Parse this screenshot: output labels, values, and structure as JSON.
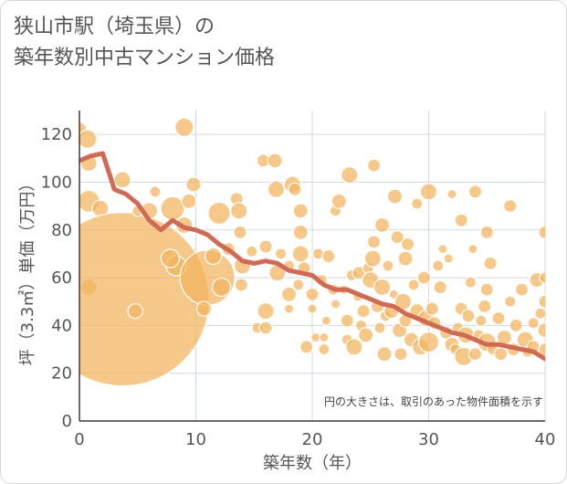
{
  "title": {
    "line1": "狭山市駅（埼玉県）の",
    "line2": "築年数別中古マンション価格"
  },
  "chart_data": {
    "type": "scatter",
    "xlabel": "築年数（年）",
    "ylabel": "坪（3.3㎡）単価（万円）",
    "note": "円の大きさは、取引のあった物件面積を示す",
    "xlim": [
      0,
      40
    ],
    "ylim": [
      0,
      130
    ],
    "xticks": [
      0,
      10,
      20,
      30,
      40
    ],
    "yticks": [
      0,
      20,
      40,
      60,
      80,
      100,
      120
    ],
    "colors": {
      "bubble": "#f2b45e",
      "bubble_stroke": "#ffffff",
      "line": "#d06a55",
      "grid": "#cfd8e0",
      "axis": "#3a3a3a"
    },
    "line": {
      "x": [
        0,
        1,
        2,
        3,
        4,
        5,
        6,
        7,
        8,
        9,
        10,
        11,
        12,
        13,
        14,
        15,
        16,
        17,
        18,
        19,
        20,
        21,
        22,
        23,
        24,
        25,
        26,
        27,
        28,
        29,
        30,
        31,
        32,
        33,
        34,
        35,
        36,
        37,
        38,
        39,
        40
      ],
      "y": [
        109,
        111,
        112,
        97,
        95,
        91,
        84,
        80,
        84,
        81,
        80,
        78,
        74,
        71,
        67,
        66,
        67,
        66,
        63,
        62,
        61,
        57,
        55,
        55,
        53,
        51,
        49,
        48,
        45,
        43,
        41,
        39,
        37,
        36,
        34,
        32,
        32,
        31,
        30,
        29,
        26
      ]
    },
    "bubbles": [
      {
        "x": 0,
        "y": 122,
        "r": 8
      },
      {
        "x": 0.7,
        "y": 118,
        "r": 10
      },
      {
        "x": 0.8,
        "y": 108,
        "r": 9
      },
      {
        "x": 0.8,
        "y": 92,
        "r": 12
      },
      {
        "x": 0.8,
        "y": 56,
        "r": 9
      },
      {
        "x": 1.8,
        "y": 89,
        "r": 9
      },
      {
        "x": 3.7,
        "y": 101,
        "r": 9
      },
      {
        "x": 3.7,
        "y": 51,
        "r": 95
      },
      {
        "x": 4.8,
        "y": 46,
        "r": 8
      },
      {
        "x": 5.0,
        "y": 88,
        "r": 6
      },
      {
        "x": 6.0,
        "y": 88,
        "r": 9
      },
      {
        "x": 6.5,
        "y": 96,
        "r": 6
      },
      {
        "x": 8.0,
        "y": 89,
        "r": 13
      },
      {
        "x": 8.3,
        "y": 65,
        "r": 11
      },
      {
        "x": 7.8,
        "y": 68,
        "r": 10
      },
      {
        "x": 9.0,
        "y": 123,
        "r": 10
      },
      {
        "x": 9.4,
        "y": 92,
        "r": 8
      },
      {
        "x": 9.8,
        "y": 99,
        "r": 8
      },
      {
        "x": 9.0,
        "y": 82,
        "r": 9
      },
      {
        "x": 11.0,
        "y": 60,
        "r": 30
      },
      {
        "x": 10.7,
        "y": 47,
        "r": 8
      },
      {
        "x": 11.5,
        "y": 69,
        "r": 9
      },
      {
        "x": 12.0,
        "y": 87,
        "r": 12
      },
      {
        "x": 12.2,
        "y": 56,
        "r": 10
      },
      {
        "x": 12.8,
        "y": 72,
        "r": 7
      },
      {
        "x": 13.5,
        "y": 93,
        "r": 7
      },
      {
        "x": 13.7,
        "y": 88,
        "r": 9
      },
      {
        "x": 13.8,
        "y": 79,
        "r": 7
      },
      {
        "x": 13.9,
        "y": 57,
        "r": 7
      },
      {
        "x": 14.0,
        "y": 65,
        "r": 9
      },
      {
        "x": 14.8,
        "y": 71,
        "r": 6
      },
      {
        "x": 15.3,
        "y": 39,
        "r": 6
      },
      {
        "x": 15.8,
        "y": 109,
        "r": 7
      },
      {
        "x": 16.0,
        "y": 73,
        "r": 7
      },
      {
        "x": 16.0,
        "y": 46,
        "r": 9
      },
      {
        "x": 16.0,
        "y": 39,
        "r": 7
      },
      {
        "x": 16.8,
        "y": 109,
        "r": 8
      },
      {
        "x": 16.9,
        "y": 97,
        "r": 9
      },
      {
        "x": 17.0,
        "y": 62,
        "r": 9
      },
      {
        "x": 17.3,
        "y": 70,
        "r": 6
      },
      {
        "x": 18.0,
        "y": 65,
        "r": 6
      },
      {
        "x": 18.0,
        "y": 53,
        "r": 8
      },
      {
        "x": 18.0,
        "y": 47,
        "r": 5
      },
      {
        "x": 18.3,
        "y": 99,
        "r": 9
      },
      {
        "x": 18.5,
        "y": 97,
        "r": 7
      },
      {
        "x": 18.8,
        "y": 57,
        "r": 6
      },
      {
        "x": 19.0,
        "y": 88,
        "r": 8
      },
      {
        "x": 19.0,
        "y": 79,
        "r": 8
      },
      {
        "x": 19.0,
        "y": 70,
        "r": 9
      },
      {
        "x": 19.3,
        "y": 64,
        "r": 7
      },
      {
        "x": 19.5,
        "y": 31,
        "r": 7
      },
      {
        "x": 20.0,
        "y": 53,
        "r": 7
      },
      {
        "x": 20.0,
        "y": 47,
        "r": 5
      },
      {
        "x": 20.3,
        "y": 35,
        "r": 5
      },
      {
        "x": 20.5,
        "y": 70,
        "r": 6
      },
      {
        "x": 20.8,
        "y": 59,
        "r": 6
      },
      {
        "x": 21.0,
        "y": 35,
        "r": 5
      },
      {
        "x": 21.0,
        "y": 30,
        "r": 6
      },
      {
        "x": 21.2,
        "y": 42,
        "r": 5
      },
      {
        "x": 21.4,
        "y": 69,
        "r": 7
      },
      {
        "x": 21.8,
        "y": 55,
        "r": 6
      },
      {
        "x": 22.0,
        "y": 49,
        "r": 5
      },
      {
        "x": 22.0,
        "y": 88,
        "r": 6
      },
      {
        "x": 22.3,
        "y": 92,
        "r": 8
      },
      {
        "x": 22.7,
        "y": 55,
        "r": 5
      },
      {
        "x": 23.0,
        "y": 34,
        "r": 6
      },
      {
        "x": 23.0,
        "y": 42,
        "r": 7
      },
      {
        "x": 23.2,
        "y": 103,
        "r": 9
      },
      {
        "x": 23.4,
        "y": 61,
        "r": 6
      },
      {
        "x": 23.6,
        "y": 31,
        "r": 9
      },
      {
        "x": 23.9,
        "y": 52,
        "r": 5
      },
      {
        "x": 24.0,
        "y": 62,
        "r": 7
      },
      {
        "x": 24.2,
        "y": 40,
        "r": 6
      },
      {
        "x": 24.4,
        "y": 46,
        "r": 7
      },
      {
        "x": 24.6,
        "y": 36,
        "r": 8
      },
      {
        "x": 24.8,
        "y": 64,
        "r": 6
      },
      {
        "x": 25.0,
        "y": 59,
        "r": 9
      },
      {
        "x": 25.2,
        "y": 68,
        "r": 9
      },
      {
        "x": 25.3,
        "y": 75,
        "r": 7
      },
      {
        "x": 25.3,
        "y": 107,
        "r": 7
      },
      {
        "x": 25.6,
        "y": 48,
        "r": 7
      },
      {
        "x": 25.8,
        "y": 39,
        "r": 6
      },
      {
        "x": 26.0,
        "y": 82,
        "r": 8
      },
      {
        "x": 26.0,
        "y": 56,
        "r": 9
      },
      {
        "x": 26.2,
        "y": 28,
        "r": 8
      },
      {
        "x": 26.3,
        "y": 44,
        "r": 6
      },
      {
        "x": 26.5,
        "y": 65,
        "r": 6
      },
      {
        "x": 26.8,
        "y": 46,
        "r": 8
      },
      {
        "x": 27.0,
        "y": 53,
        "r": 5
      },
      {
        "x": 27.1,
        "y": 94,
        "r": 8
      },
      {
        "x": 27.3,
        "y": 77,
        "r": 7
      },
      {
        "x": 27.5,
        "y": 38,
        "r": 8
      },
      {
        "x": 27.6,
        "y": 28,
        "r": 7
      },
      {
        "x": 27.8,
        "y": 50,
        "r": 9
      },
      {
        "x": 28.0,
        "y": 68,
        "r": 8
      },
      {
        "x": 28.0,
        "y": 42,
        "r": 7
      },
      {
        "x": 28.2,
        "y": 74,
        "r": 7
      },
      {
        "x": 28.5,
        "y": 34,
        "r": 8
      },
      {
        "x": 28.7,
        "y": 57,
        "r": 6
      },
      {
        "x": 29.0,
        "y": 91,
        "r": 6
      },
      {
        "x": 29.0,
        "y": 46,
        "r": 8
      },
      {
        "x": 29.3,
        "y": 31,
        "r": 9
      },
      {
        "x": 29.6,
        "y": 60,
        "r": 7
      },
      {
        "x": 29.8,
        "y": 43,
        "r": 9
      },
      {
        "x": 30.0,
        "y": 96,
        "r": 9
      },
      {
        "x": 30.0,
        "y": 33,
        "r": 11
      },
      {
        "x": 30.3,
        "y": 47,
        "r": 7
      },
      {
        "x": 30.5,
        "y": 41,
        "r": 7
      },
      {
        "x": 30.8,
        "y": 65,
        "r": 6
      },
      {
        "x": 31.0,
        "y": 56,
        "r": 7
      },
      {
        "x": 31.2,
        "y": 72,
        "r": 5
      },
      {
        "x": 31.5,
        "y": 37,
        "r": 7
      },
      {
        "x": 31.7,
        "y": 68,
        "r": 5
      },
      {
        "x": 32.0,
        "y": 95,
        "r": 5
      },
      {
        "x": 32.0,
        "y": 32,
        "r": 8
      },
      {
        "x": 32.3,
        "y": 30,
        "r": 6
      },
      {
        "x": 32.5,
        "y": 39,
        "r": 6
      },
      {
        "x": 32.8,
        "y": 47,
        "r": 7
      },
      {
        "x": 32.8,
        "y": 84,
        "r": 7
      },
      {
        "x": 33.0,
        "y": 27,
        "r": 10
      },
      {
        "x": 33.2,
        "y": 36,
        "r": 9
      },
      {
        "x": 33.4,
        "y": 44,
        "r": 7
      },
      {
        "x": 33.6,
        "y": 58,
        "r": 6
      },
      {
        "x": 33.8,
        "y": 72,
        "r": 5
      },
      {
        "x": 34.0,
        "y": 28,
        "r": 7
      },
      {
        "x": 34.0,
        "y": 96,
        "r": 7
      },
      {
        "x": 34.3,
        "y": 36,
        "r": 6
      },
      {
        "x": 34.5,
        "y": 42,
        "r": 6
      },
      {
        "x": 34.8,
        "y": 48,
        "r": 7
      },
      {
        "x": 35.0,
        "y": 55,
        "r": 7
      },
      {
        "x": 35.0,
        "y": 79,
        "r": 7
      },
      {
        "x": 35.0,
        "y": 33,
        "r": 10
      },
      {
        "x": 35.3,
        "y": 66,
        "r": 7
      },
      {
        "x": 35.5,
        "y": 30,
        "r": 6
      },
      {
        "x": 36.0,
        "y": 43,
        "r": 7
      },
      {
        "x": 36.2,
        "y": 28,
        "r": 7
      },
      {
        "x": 36.5,
        "y": 35,
        "r": 8
      },
      {
        "x": 37.0,
        "y": 90,
        "r": 7
      },
      {
        "x": 37.0,
        "y": 50,
        "r": 6
      },
      {
        "x": 37.3,
        "y": 30,
        "r": 7
      },
      {
        "x": 37.5,
        "y": 40,
        "r": 7
      },
      {
        "x": 38.0,
        "y": 55,
        "r": 7
      },
      {
        "x": 38.3,
        "y": 34,
        "r": 9
      },
      {
        "x": 38.5,
        "y": 29,
        "r": 6
      },
      {
        "x": 39.0,
        "y": 31,
        "r": 7
      },
      {
        "x": 39.0,
        "y": 41,
        "r": 6
      },
      {
        "x": 39.3,
        "y": 59,
        "r": 8
      },
      {
        "x": 39.6,
        "y": 45,
        "r": 6
      },
      {
        "x": 40.0,
        "y": 79,
        "r": 7
      },
      {
        "x": 40.0,
        "y": 60,
        "r": 6
      },
      {
        "x": 40.0,
        "y": 50,
        "r": 7
      },
      {
        "x": 40.0,
        "y": 38,
        "r": 8
      },
      {
        "x": 40.0,
        "y": 30,
        "r": 7
      }
    ]
  }
}
